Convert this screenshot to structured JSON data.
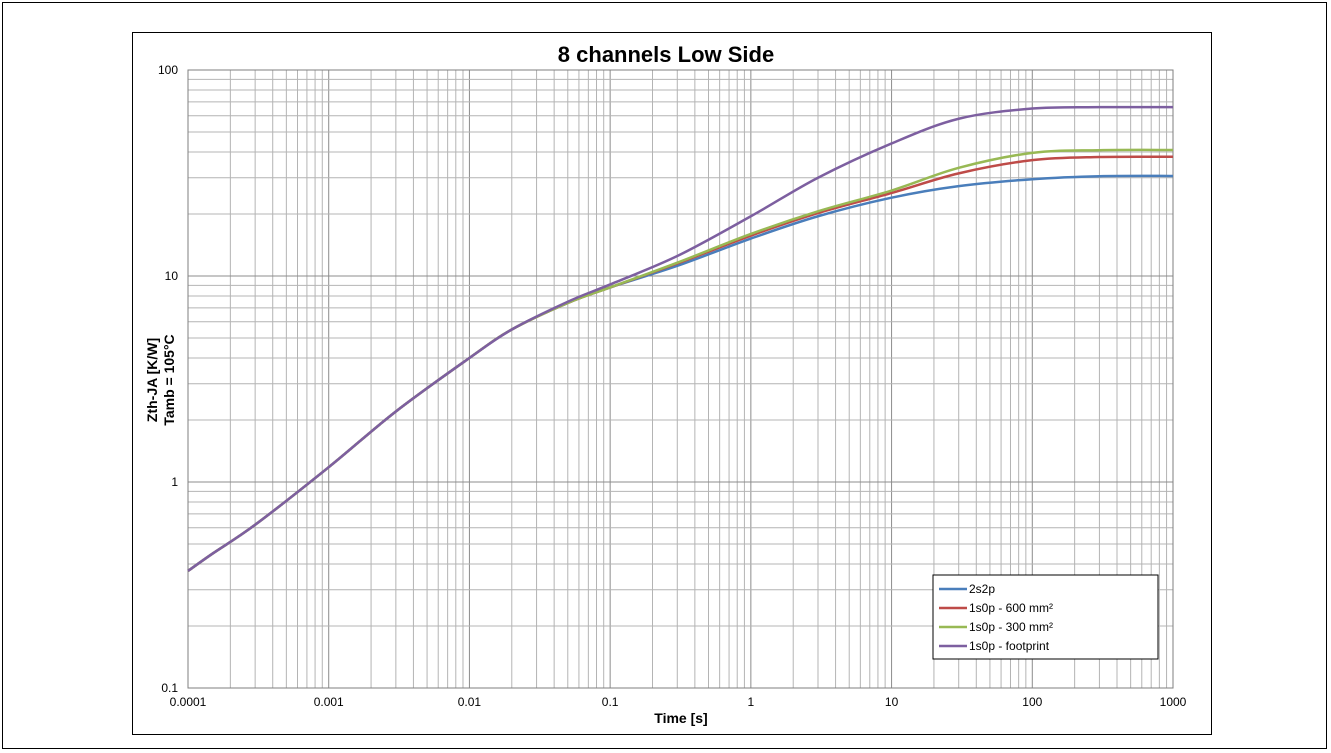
{
  "chart_data": {
    "type": "line",
    "title": "8 channels Low Side",
    "xlabel": "Time [s]",
    "ylabel": [
      "Zth-JA [K/W]",
      "Tamb = 105°C"
    ],
    "xscale": "log",
    "yscale": "log",
    "xlim": [
      0.0001,
      1000
    ],
    "ylim": [
      0.1,
      100
    ],
    "x_ticks": [
      "0.0001",
      "0.001",
      "0.01",
      "0.1",
      "1",
      "10",
      "100",
      "1000"
    ],
    "y_ticks": [
      "0.1",
      "1",
      "10",
      "100"
    ],
    "grid": true,
    "legend_position": "bottom-right",
    "series": [
      {
        "name": "2s2p",
        "color": "#4a7ebb",
        "x": [
          0.0001,
          0.00015,
          0.0003,
          0.001,
          0.003,
          0.01,
          0.02,
          0.05,
          0.1,
          0.3,
          1,
          3,
          10,
          30,
          100,
          300,
          1000
        ],
        "y": [
          0.37,
          0.45,
          0.62,
          1.18,
          2.2,
          4.0,
          5.5,
          7.4,
          8.8,
          11.2,
          15.2,
          19.5,
          24.0,
          27.3,
          29.5,
          30.5,
          30.6
        ]
      },
      {
        "name": "1s0p - 600 mm²",
        "color": "#be4b48",
        "x": [
          0.0001,
          0.00015,
          0.0003,
          0.001,
          0.003,
          0.01,
          0.02,
          0.05,
          0.1,
          0.3,
          1,
          3,
          10,
          30,
          100,
          300,
          1000
        ],
        "y": [
          0.37,
          0.45,
          0.62,
          1.18,
          2.2,
          4.0,
          5.5,
          7.4,
          8.8,
          11.5,
          15.7,
          20.2,
          25.3,
          31.5,
          36.5,
          37.8,
          37.9
        ]
      },
      {
        "name": "1s0p - 300 mm²",
        "color": "#98b954",
        "x": [
          0.0001,
          0.00015,
          0.0003,
          0.001,
          0.003,
          0.01,
          0.02,
          0.05,
          0.1,
          0.3,
          1,
          3,
          10,
          30,
          100,
          300,
          1000
        ],
        "y": [
          0.37,
          0.45,
          0.62,
          1.18,
          2.2,
          4.0,
          5.5,
          7.4,
          8.8,
          11.6,
          16.0,
          20.6,
          26.0,
          33.5,
          39.6,
          40.8,
          40.9
        ]
      },
      {
        "name": "1s0p - footprint",
        "color": "#7d5fa0",
        "x": [
          0.0001,
          0.00015,
          0.0003,
          0.001,
          0.003,
          0.01,
          0.02,
          0.05,
          0.1,
          0.3,
          1,
          3,
          10,
          30,
          100,
          300,
          1000
        ],
        "y": [
          0.37,
          0.45,
          0.62,
          1.18,
          2.2,
          4.0,
          5.5,
          7.5,
          9.1,
          12.5,
          19.5,
          30.0,
          44.0,
          58.0,
          65.0,
          66.0,
          66.0
        ]
      }
    ]
  }
}
